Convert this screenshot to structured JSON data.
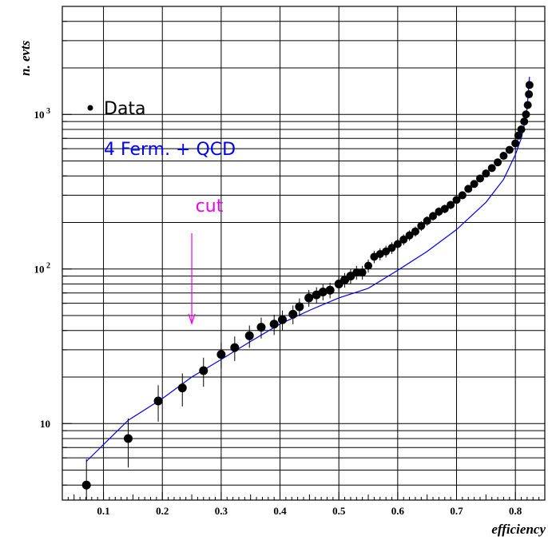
{
  "chart_data": {
    "type": "scatter",
    "title": "",
    "xlabel": "efficiency",
    "ylabel": "n. evts",
    "xlim": [
      0.03,
      0.85
    ],
    "ylim": [
      3.2,
      5000
    ],
    "yscale": "log",
    "grid": true,
    "x_ticks": [
      {
        "value": 0.1,
        "label": "0.1"
      },
      {
        "value": 0.2,
        "label": "0.2"
      },
      {
        "value": 0.3,
        "label": "0.3"
      },
      {
        "value": 0.4,
        "label": "0.4"
      },
      {
        "value": 0.5,
        "label": "0.5"
      },
      {
        "value": 0.6,
        "label": "0.6"
      },
      {
        "value": 0.7,
        "label": "0.7"
      },
      {
        "value": 0.8,
        "label": "0.8"
      }
    ],
    "y_ticks": [
      {
        "value": 10,
        "base": "10",
        "exp": ""
      },
      {
        "value": 100,
        "base": "10",
        "exp": "2"
      },
      {
        "value": 1000,
        "base": "10",
        "exp": "3"
      }
    ],
    "legend": [
      {
        "label": "Data",
        "color": "#000000",
        "marker": "dot"
      },
      {
        "label": "4 Ferm. + QCD",
        "color": "#0000ee",
        "marker": "line"
      }
    ],
    "annotation": {
      "label": "cut",
      "x": 0.25,
      "color": "#ee00ee"
    },
    "series": [
      {
        "name": "Data",
        "color": "#000000",
        "x": [
          0.071,
          0.142,
          0.193,
          0.234,
          0.27,
          0.3,
          0.323,
          0.348,
          0.368,
          0.39,
          0.404,
          0.422,
          0.433,
          0.449,
          0.462,
          0.473,
          0.485,
          0.5,
          0.51,
          0.52,
          0.53,
          0.54,
          0.55,
          0.56,
          0.57,
          0.58,
          0.59,
          0.6,
          0.61,
          0.62,
          0.63,
          0.64,
          0.65,
          0.66,
          0.67,
          0.68,
          0.69,
          0.7,
          0.71,
          0.72,
          0.73,
          0.74,
          0.75,
          0.76,
          0.77,
          0.78,
          0.79,
          0.8,
          0.805,
          0.81,
          0.815,
          0.818,
          0.821,
          0.823,
          0.824
        ],
        "y": [
          4,
          8,
          14,
          17,
          22,
          28,
          31,
          37,
          42,
          44,
          47,
          51,
          57,
          65,
          68,
          71,
          73,
          80,
          85,
          90,
          95,
          95,
          105,
          120,
          125,
          130,
          137,
          145,
          155,
          165,
          175,
          190,
          205,
          220,
          235,
          245,
          260,
          280,
          300,
          330,
          355,
          385,
          415,
          450,
          490,
          540,
          590,
          650,
          730,
          800,
          900,
          1000,
          1150,
          1350,
          1550
        ],
        "err": [
          1.9,
          2.8,
          3.7,
          4.1,
          4.7,
          5.3,
          5.6,
          6.1,
          6.5,
          6.6,
          6.9,
          7.1,
          7.5,
          8.1,
          8.2,
          8.4,
          8.5,
          8.9,
          9.2,
          9.5,
          9.7,
          9.7,
          10.2,
          11,
          11.2,
          11.4,
          11.7,
          12,
          12.4,
          12.8,
          13.2,
          13.8,
          14.3,
          14.8,
          15.3,
          15.7,
          16.1,
          16.7,
          17.3,
          18.2,
          18.8,
          19.6,
          20.4,
          21.2,
          22.1,
          23.2,
          24.3,
          25.5,
          27,
          28.3,
          30,
          31.6,
          33.9,
          36.7,
          39.4
        ]
      },
      {
        "name": "4 Ferm. + QCD",
        "color": "#0000ee",
        "x": [
          0.071,
          0.142,
          0.2,
          0.25,
          0.3,
          0.35,
          0.4,
          0.45,
          0.5,
          0.55,
          0.6,
          0.65,
          0.7,
          0.75,
          0.78,
          0.8,
          0.81,
          0.815,
          0.82,
          0.822,
          0.824
        ],
        "y": [
          5.7,
          10.5,
          14.5,
          20,
          26,
          34,
          44,
          54,
          65,
          75,
          98,
          130,
          180,
          270,
          380,
          550,
          700,
          850,
          1100,
          1400,
          1750
        ]
      }
    ]
  }
}
